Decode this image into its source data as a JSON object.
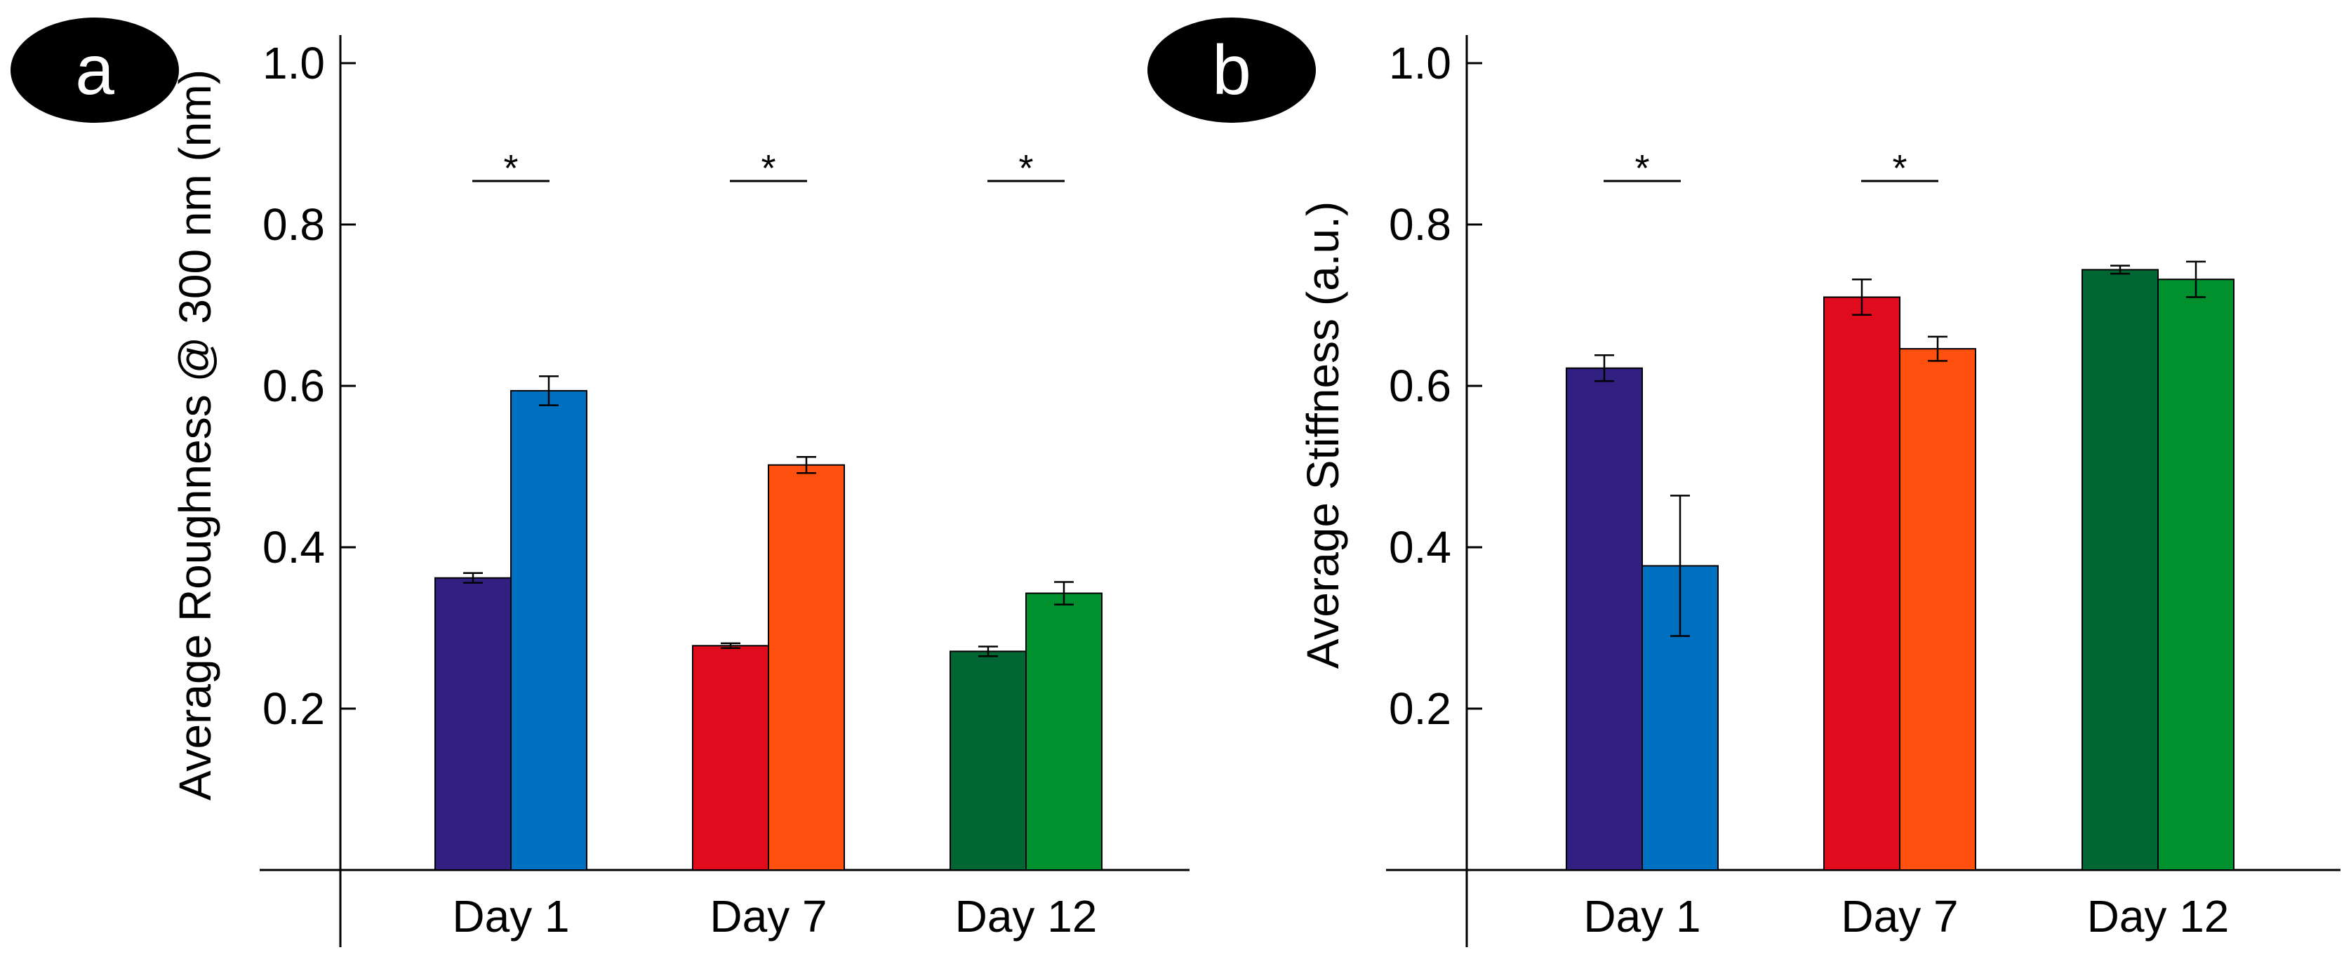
{
  "chart_data": [
    {
      "type": "bar",
      "panel_label": "a",
      "categories": [
        "Day 1",
        "Day 7",
        "Day 12"
      ],
      "ylabel": "Average Roughness @ 300 nm (nm)",
      "ylim": [
        0,
        1.05
      ],
      "yticks": [
        "0.2",
        "0.4",
        "0.6",
        "0.8",
        "1.0"
      ],
      "significance": [
        "*",
        "*",
        "*"
      ],
      "groups": [
        {
          "category": "Day 1",
          "bars": [
            {
              "value": 0.362,
              "error": 0.006,
              "color": "#312082"
            },
            {
              "value": 0.594,
              "error": 0.018,
              "color": "#0070C0"
            }
          ]
        },
        {
          "category": "Day 7",
          "bars": [
            {
              "value": 0.278,
              "error": 0.003,
              "color": "#E00C1E"
            },
            {
              "value": 0.502,
              "error": 0.01,
              "color": "#FF5010"
            }
          ]
        },
        {
          "category": "Day 12",
          "bars": [
            {
              "value": 0.271,
              "error": 0.006,
              "color": "#006633"
            },
            {
              "value": 0.343,
              "error": 0.014,
              "color": "#00902E"
            }
          ]
        }
      ]
    },
    {
      "type": "bar",
      "panel_label": "b",
      "categories": [
        "Day 1",
        "Day 7",
        "Day 12"
      ],
      "ylabel": "Average Stiffness (a.u.)",
      "ylim": [
        0,
        1.05
      ],
      "yticks": [
        "0.2",
        "0.4",
        "0.6",
        "0.8",
        "1.0"
      ],
      "significance": [
        "*",
        "*",
        ""
      ],
      "groups": [
        {
          "category": "Day 1",
          "bars": [
            {
              "value": 0.622,
              "error": 0.016,
              "color": "#312082"
            },
            {
              "value": 0.377,
              "error": 0.087,
              "color": "#0070C0"
            }
          ]
        },
        {
          "category": "Day 7",
          "bars": [
            {
              "value": 0.71,
              "error": 0.022,
              "color": "#E00C1E"
            },
            {
              "value": 0.646,
              "error": 0.015,
              "color": "#FF5010"
            }
          ]
        },
        {
          "category": "Day 12",
          "bars": [
            {
              "value": 0.744,
              "error": 0.005,
              "color": "#006633"
            },
            {
              "value": 0.732,
              "error": 0.022,
              "color": "#00902E"
            }
          ]
        }
      ]
    }
  ]
}
